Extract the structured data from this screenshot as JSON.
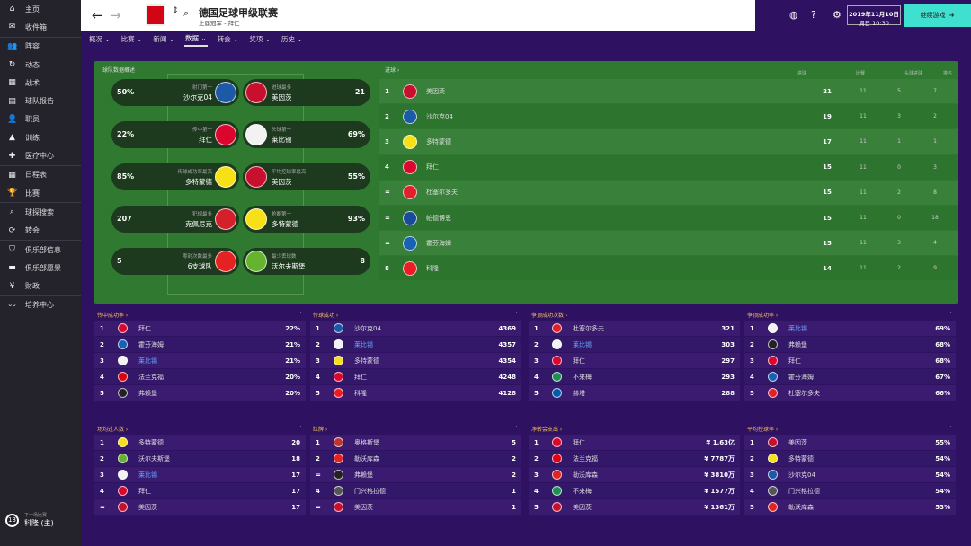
{
  "sidebar": {
    "groups": [
      [
        {
          "label": "主页",
          "icon": "home-icon",
          "glyph": "⌂"
        },
        {
          "label": "收件箱",
          "icon": "inbox-icon",
          "glyph": "✉"
        }
      ],
      [
        {
          "label": "阵容",
          "icon": "squad-icon",
          "glyph": "👥"
        },
        {
          "label": "动态",
          "icon": "dynamics-icon",
          "glyph": "↻"
        },
        {
          "label": "战术",
          "icon": "tactics-icon",
          "glyph": "▦"
        },
        {
          "label": "球队报告",
          "icon": "report-icon",
          "glyph": "▤"
        },
        {
          "label": "职员",
          "icon": "staff-icon",
          "glyph": "👤"
        },
        {
          "label": "训练",
          "icon": "training-icon",
          "glyph": "▲"
        },
        {
          "label": "医疗中心",
          "icon": "medical-icon",
          "glyph": "✚"
        }
      ],
      [
        {
          "label": "日程表",
          "icon": "calendar-icon",
          "glyph": "▦"
        },
        {
          "label": "比赛",
          "icon": "trophy-icon",
          "glyph": "🏆"
        }
      ],
      [
        {
          "label": "球探搜索",
          "icon": "search-icon",
          "glyph": "⌕"
        },
        {
          "label": "转会",
          "icon": "transfer-icon",
          "glyph": "⟳"
        }
      ],
      [
        {
          "label": "俱乐部信息",
          "icon": "shield-icon",
          "glyph": "⛉"
        },
        {
          "label": "俱乐部愿景",
          "icon": "briefcase-icon",
          "glyph": "▬"
        },
        {
          "label": "财政",
          "icon": "money-icon",
          "glyph": "¥"
        }
      ],
      [
        {
          "label": "培养中心",
          "icon": "development-icon",
          "glyph": "〰"
        }
      ]
    ],
    "next_match": {
      "label": "下一场比赛",
      "team": "科隆 (主)",
      "days": "13"
    }
  },
  "header": {
    "title": "德国足球甲级联赛",
    "subtitle": "上届冠军 - 拜仁",
    "date": "2019年11月10日",
    "time": "周日 10:30",
    "continue": "继续游戏"
  },
  "tabs": [
    {
      "label": "概况 ⌄"
    },
    {
      "label": "比赛 ⌄"
    },
    {
      "label": "新闻 ⌄"
    },
    {
      "label": "数据 ⌄",
      "active": true
    },
    {
      "label": "转会 ⌄"
    },
    {
      "label": "奖项 ⌄"
    },
    {
      "label": "历史 ⌄"
    }
  ],
  "team_colors": {
    "沙尔克04": "#1c5aa8",
    "美因茨": "#c8102e",
    "拜仁": "#dc052d",
    "莱比锡": "#f2f2f2",
    "多特蒙德": "#f7e017",
    "克佩尼克": "#d4202a",
    "6支球队": "#e32221",
    "沃尔夫斯堡": "#65b32e",
    "杜塞尔多夫": "#e3202a",
    "帕德博恩": "#1a4a9a",
    "霍芬海姆": "#1961b5",
    "科隆": "#ed1c24",
    "法兰克福": "#e1000f",
    "弗赖堡": "#222222",
    "不来梅": "#1d9053",
    "赫塔": "#005ca9",
    "奥格斯堡": "#ba3733",
    "勒沃库森": "#e32221",
    "门兴格拉德": "#555555"
  },
  "overview": {
    "title": "球队数据概述",
    "items": [
      {
        "left": {
          "value": "50%",
          "caption": "射门第一",
          "team": "沙尔克04"
        },
        "right": {
          "value": "21",
          "caption": "进球最多",
          "team": "美因茨"
        }
      },
      {
        "left": {
          "value": "22%",
          "caption": "传中第一",
          "team": "拜仁"
        },
        "right": {
          "value": "69%",
          "caption": "头球第一",
          "team": "莱比锡"
        }
      },
      {
        "left": {
          "value": "85%",
          "caption": "传球成功率最高",
          "team": "多特蒙德"
        },
        "right": {
          "value": "55%",
          "caption": "平均控球率最高",
          "team": "美因茨"
        }
      },
      {
        "left": {
          "value": "207",
          "caption": "犯规最多",
          "team": "克佩尼克"
        },
        "right": {
          "value": "93%",
          "caption": "抢断第一",
          "team": "多特蒙德"
        }
      },
      {
        "left": {
          "value": "5",
          "caption": "零封次数最多",
          "team": "6支球队"
        },
        "right": {
          "value": "8",
          "caption": "最少丢球数",
          "team": "沃尔夫斯堡"
        }
      }
    ]
  },
  "goals": {
    "title": "进球 ›",
    "columns": [
      "进球",
      "比赛",
      "头球进球",
      "排名"
    ],
    "rows": [
      {
        "pos": "1",
        "team": "美因茨",
        "vals": [
          "21",
          "11",
          "5",
          "7"
        ]
      },
      {
        "pos": "2",
        "team": "沙尔克04",
        "vals": [
          "19",
          "11",
          "3",
          "2"
        ]
      },
      {
        "pos": "3",
        "team": "多特蒙德",
        "vals": [
          "17",
          "11",
          "1",
          "1"
        ]
      },
      {
        "pos": "4",
        "team": "拜仁",
        "vals": [
          "15",
          "11",
          "0",
          "3"
        ]
      },
      {
        "pos": "=",
        "team": "杜塞尔多夫",
        "vals": [
          "15",
          "11",
          "2",
          "8"
        ]
      },
      {
        "pos": "=",
        "team": "帕德博恩",
        "vals": [
          "15",
          "11",
          "0",
          "18"
        ]
      },
      {
        "pos": "=",
        "team": "霍芬海姆",
        "vals": [
          "15",
          "11",
          "3",
          "4"
        ]
      },
      {
        "pos": "8",
        "team": "科隆",
        "vals": [
          "14",
          "11",
          "2",
          "9"
        ]
      }
    ]
  },
  "panels": [
    {
      "title": "传中成功率 ›",
      "rows": [
        [
          "1",
          "拜仁",
          "22%"
        ],
        [
          "2",
          "霍芬海姆",
          "21%"
        ],
        [
          "3",
          "莱比锡",
          "21%"
        ],
        [
          "4",
          "法兰克福",
          "20%"
        ],
        [
          "5",
          "弗赖堡",
          "20%"
        ]
      ]
    },
    {
      "title": "传球成功 ›",
      "rows": [
        [
          "1",
          "沙尔克04",
          "4369"
        ],
        [
          "2",
          "莱比锡",
          "4357"
        ],
        [
          "3",
          "多特蒙德",
          "4354"
        ],
        [
          "4",
          "拜仁",
          "4248"
        ],
        [
          "5",
          "科隆",
          "4128"
        ]
      ]
    },
    {
      "title": "争顶成功次数 ›",
      "rows": [
        [
          "1",
          "杜塞尔多夫",
          "321"
        ],
        [
          "2",
          "莱比锡",
          "303"
        ],
        [
          "3",
          "拜仁",
          "297"
        ],
        [
          "4",
          "不来梅",
          "293"
        ],
        [
          "5",
          "赫塔",
          "288"
        ]
      ]
    },
    {
      "title": "争顶成功率 ›",
      "rows": [
        [
          "1",
          "莱比锡",
          "69%"
        ],
        [
          "2",
          "弗赖堡",
          "68%"
        ],
        [
          "3",
          "拜仁",
          "68%"
        ],
        [
          "4",
          "霍芬海姆",
          "67%"
        ],
        [
          "5",
          "杜塞尔多夫",
          "66%"
        ]
      ]
    },
    {
      "title": "场均过人数 ›",
      "rows": [
        [
          "1",
          "多特蒙德",
          "20"
        ],
        [
          "2",
          "沃尔夫斯堡",
          "18"
        ],
        [
          "3",
          "莱比锡",
          "17"
        ],
        [
          "4",
          "拜仁",
          "17"
        ],
        [
          "=",
          "美因茨",
          "17"
        ]
      ]
    },
    {
      "title": "红牌 ›",
      "rows": [
        [
          "1",
          "奥格斯堡",
          "5"
        ],
        [
          "2",
          "勒沃库森",
          "2"
        ],
        [
          "=",
          "弗赖堡",
          "2"
        ],
        [
          "4",
          "门兴格拉德",
          "1"
        ],
        [
          "=",
          "美因茨",
          "1"
        ]
      ]
    },
    {
      "title": "净转会支出 ›",
      "rows": [
        [
          "1",
          "拜仁",
          "¥ 1.63亿"
        ],
        [
          "2",
          "法兰克福",
          "¥ 7787万"
        ],
        [
          "3",
          "勒沃库森",
          "¥ 3810万"
        ],
        [
          "4",
          "不来梅",
          "¥ 1577万"
        ],
        [
          "5",
          "美因茨",
          "¥ 1361万"
        ]
      ]
    },
    {
      "title": "平均控球率 ›",
      "rows": [
        [
          "1",
          "美因茨",
          "55%"
        ],
        [
          "2",
          "多特蒙德",
          "54%"
        ],
        [
          "3",
          "沙尔克04",
          "54%"
        ],
        [
          "4",
          "门兴格拉德",
          "54%"
        ],
        [
          "5",
          "勒沃库森",
          "53%"
        ]
      ]
    }
  ],
  "highlight_team": "莱比锡"
}
